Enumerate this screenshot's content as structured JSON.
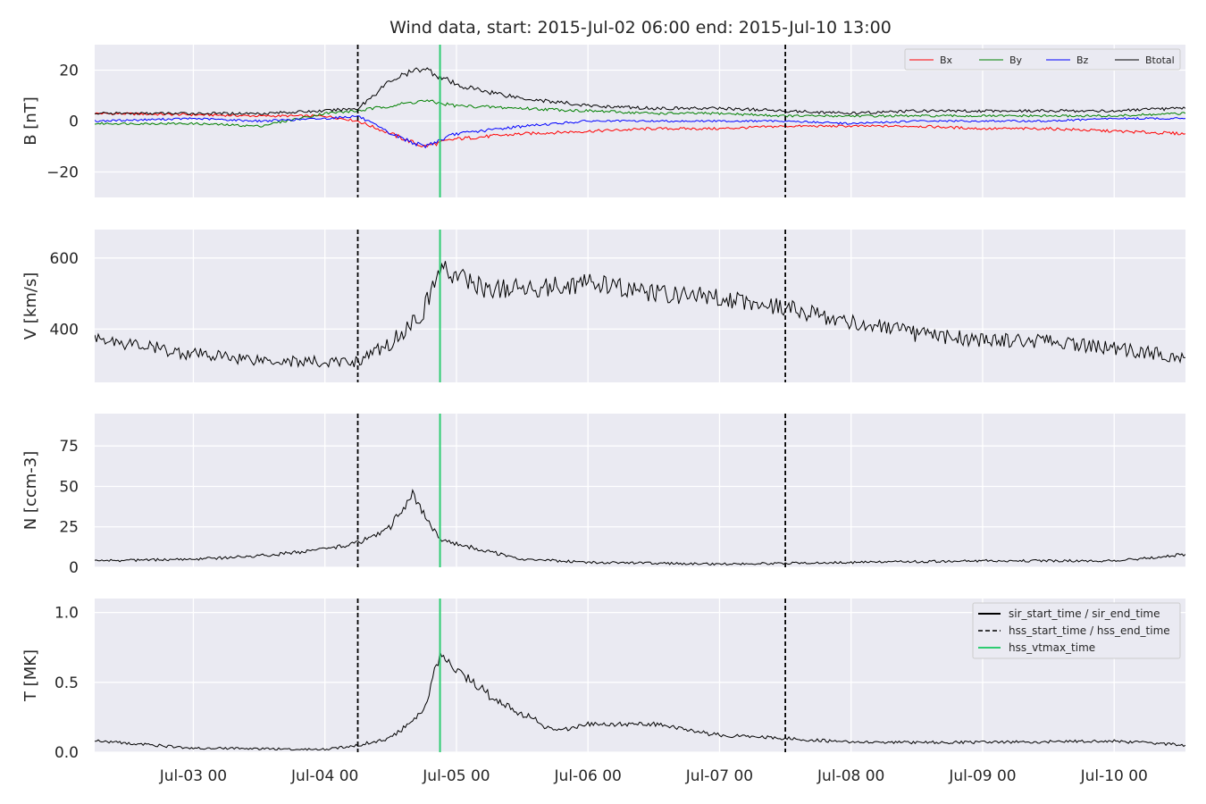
{
  "chart_data": {
    "type": "line",
    "title": "Wind data, start: 2015-Jul-02 06:00  end: 2015-Jul-10 13:00",
    "x_range": [
      "2015-07-02T06:00",
      "2015-07-10T13:00"
    ],
    "x_ticks": [
      "Jul-03 00",
      "Jul-04 00",
      "Jul-05 00",
      "Jul-06 00",
      "Jul-07 00",
      "Jul-08 00",
      "Jul-09 00",
      "Jul-10 00"
    ],
    "grid": true,
    "events": {
      "hss_start_time": "2015-07-04T06:00",
      "hss_vtmax_time": "2015-07-04T21:00",
      "hss_end_time": "2015-07-07T12:00"
    },
    "panels": [
      {
        "ylabel": "B [nT]",
        "ylim": [
          -30,
          30
        ],
        "y_ticks": [
          "20",
          "0",
          "−20"
        ],
        "legend_position": "top-right",
        "series": [
          {
            "name": "Bx",
            "color": "#ff0000",
            "x": [
              "07-02 06:00",
              "07-03 00:00",
              "07-03 12:00",
              "07-04 00:00",
              "07-04 06:00",
              "07-04 12:00",
              "07-04 18:00",
              "07-05 00:00",
              "07-05 12:00",
              "07-06 00:00",
              "07-06 12:00",
              "07-07 00:00",
              "07-07 12:00",
              "07-08 00:00",
              "07-08 12:00",
              "07-09 00:00",
              "07-09 12:00",
              "07-10 00:00",
              "07-10 13:00"
            ],
            "values": [
              3,
              2.5,
              2,
              2,
              0,
              -5,
              -10,
              -7,
              -5,
              -4,
              -3,
              -3,
              -2,
              -2,
              -2,
              -3,
              -3,
              -4,
              -5
            ]
          },
          {
            "name": "By",
            "color": "#008000",
            "x": [
              "07-02 06:00",
              "07-03 00:00",
              "07-03 12:00",
              "07-04 00:00",
              "07-04 06:00",
              "07-04 12:00",
              "07-04 18:00",
              "07-05 00:00",
              "07-05 12:00",
              "07-06 00:00",
              "07-06 12:00",
              "07-07 00:00",
              "07-07 12:00",
              "07-08 00:00",
              "07-08 12:00",
              "07-09 00:00",
              "07-09 12:00",
              "07-10 00:00",
              "07-10 13:00"
            ],
            "values": [
              -1,
              -1,
              -2,
              3,
              4,
              6,
              8,
              6,
              5,
              4,
              3,
              3,
              2,
              2,
              2,
              2,
              2,
              2,
              3
            ]
          },
          {
            "name": "Bz",
            "color": "#0000ff",
            "x": [
              "07-02 06:00",
              "07-03 00:00",
              "07-03 12:00",
              "07-04 00:00",
              "07-04 06:00",
              "07-04 12:00",
              "07-04 18:00",
              "07-05 00:00",
              "07-05 12:00",
              "07-06 00:00",
              "07-06 12:00",
              "07-07 00:00",
              "07-07 12:00",
              "07-08 00:00",
              "07-08 12:00",
              "07-09 00:00",
              "07-09 12:00",
              "07-10 00:00",
              "07-10 13:00"
            ],
            "values": [
              0,
              1,
              0,
              1,
              2,
              -5,
              -10,
              -5,
              -2,
              0,
              0,
              0,
              0,
              -1,
              0,
              0,
              0,
              1,
              1
            ]
          },
          {
            "name": "Btotal",
            "color": "#000000",
            "x": [
              "07-02 06:00",
              "07-03 00:00",
              "07-03 12:00",
              "07-04 00:00",
              "07-04 06:00",
              "07-04 12:00",
              "07-04 18:00",
              "07-05 00:00",
              "07-05 12:00",
              "07-06 00:00",
              "07-06 12:00",
              "07-07 00:00",
              "07-07 12:00",
              "07-08 00:00",
              "07-08 12:00",
              "07-09 00:00",
              "07-09 12:00",
              "07-10 00:00",
              "07-10 13:00"
            ],
            "values": [
              3,
              3,
              3,
              4,
              5,
              16,
              21,
              14,
              9,
              6,
              5,
              5,
              4,
              3,
              4,
              4,
              4,
              4,
              5
            ]
          }
        ]
      },
      {
        "ylabel": "V [km/s]",
        "ylim": [
          250,
          680
        ],
        "y_ticks": [
          "600",
          "400"
        ],
        "series": [
          {
            "name": "V",
            "color": "#000000",
            "x": [
              "07-02 06:00",
              "07-02 18:00",
              "07-03 00:00",
              "07-03 12:00",
              "07-04 00:00",
              "07-04 06:00",
              "07-04 12:00",
              "07-04 18:00",
              "07-04 21:00",
              "07-05 06:00",
              "07-05 18:00",
              "07-06 00:00",
              "07-06 12:00",
              "07-07 00:00",
              "07-07 12:00",
              "07-08 00:00",
              "07-08 12:00",
              "07-09 00:00",
              "07-09 12:00",
              "07-10 00:00",
              "07-10 13:00"
            ],
            "values": [
              378,
              343,
              330,
              315,
              305,
              310,
              360,
              450,
              570,
              510,
              520,
              530,
              500,
              490,
              460,
              420,
              385,
              370,
              365,
              345,
              320
            ]
          }
        ]
      },
      {
        "ylabel": "N [ccm-3]",
        "ylim": [
          0,
          95
        ],
        "y_ticks": [
          "75",
          "50",
          "25",
          "0"
        ],
        "series": [
          {
            "name": "N",
            "color": "#000000",
            "x": [
              "07-02 06:00",
              "07-03 00:00",
              "07-03 12:00",
              "07-04 00:00",
              "07-04 06:00",
              "07-04 12:00",
              "07-04 16:00",
              "07-04 21:00",
              "07-05 03:00",
              "07-05 12:00",
              "07-06 00:00",
              "07-07 00:00",
              "07-08 00:00",
              "07-09 00:00",
              "07-10 00:00",
              "07-10 13:00"
            ],
            "values": [
              4,
              5,
              7,
              11,
              15,
              25,
              45,
              17,
              12,
              5,
              3,
              2,
              3,
              4,
              4,
              8
            ]
          }
        ]
      },
      {
        "ylabel": "T [MK]",
        "ylim": [
          0,
          1.1
        ],
        "y_ticks": [
          "1.0",
          "0.5",
          "0.0"
        ],
        "legend_position": "top-right",
        "series": [
          {
            "name": "T",
            "color": "#000000",
            "x": [
              "07-02 06:00",
              "07-03 00:00",
              "07-04 00:00",
              "07-04 06:00",
              "07-04 12:00",
              "07-04 18:00",
              "07-04 21:00",
              "07-05 06:00",
              "07-05 18:00",
              "07-06 00:00",
              "07-06 12:00",
              "07-07 00:00",
              "07-07 12:00",
              "07-08 00:00",
              "07-09 00:00",
              "07-10 00:00",
              "07-10 13:00"
            ],
            "values": [
              0.08,
              0.03,
              0.02,
              0.05,
              0.1,
              0.3,
              0.7,
              0.4,
              0.15,
              0.2,
              0.2,
              0.12,
              0.1,
              0.07,
              0.07,
              0.08,
              0.05
            ]
          }
        ]
      }
    ],
    "line_legend": [
      {
        "name": "sir_start_time / sir_end_time",
        "color": "#000000",
        "style": "solid"
      },
      {
        "name": "hss_start_time / hss_end_time",
        "color": "#000000",
        "style": "dashed"
      },
      {
        "name": "hss_vtmax_time",
        "color": "#2ecc71",
        "style": "solid"
      }
    ]
  }
}
